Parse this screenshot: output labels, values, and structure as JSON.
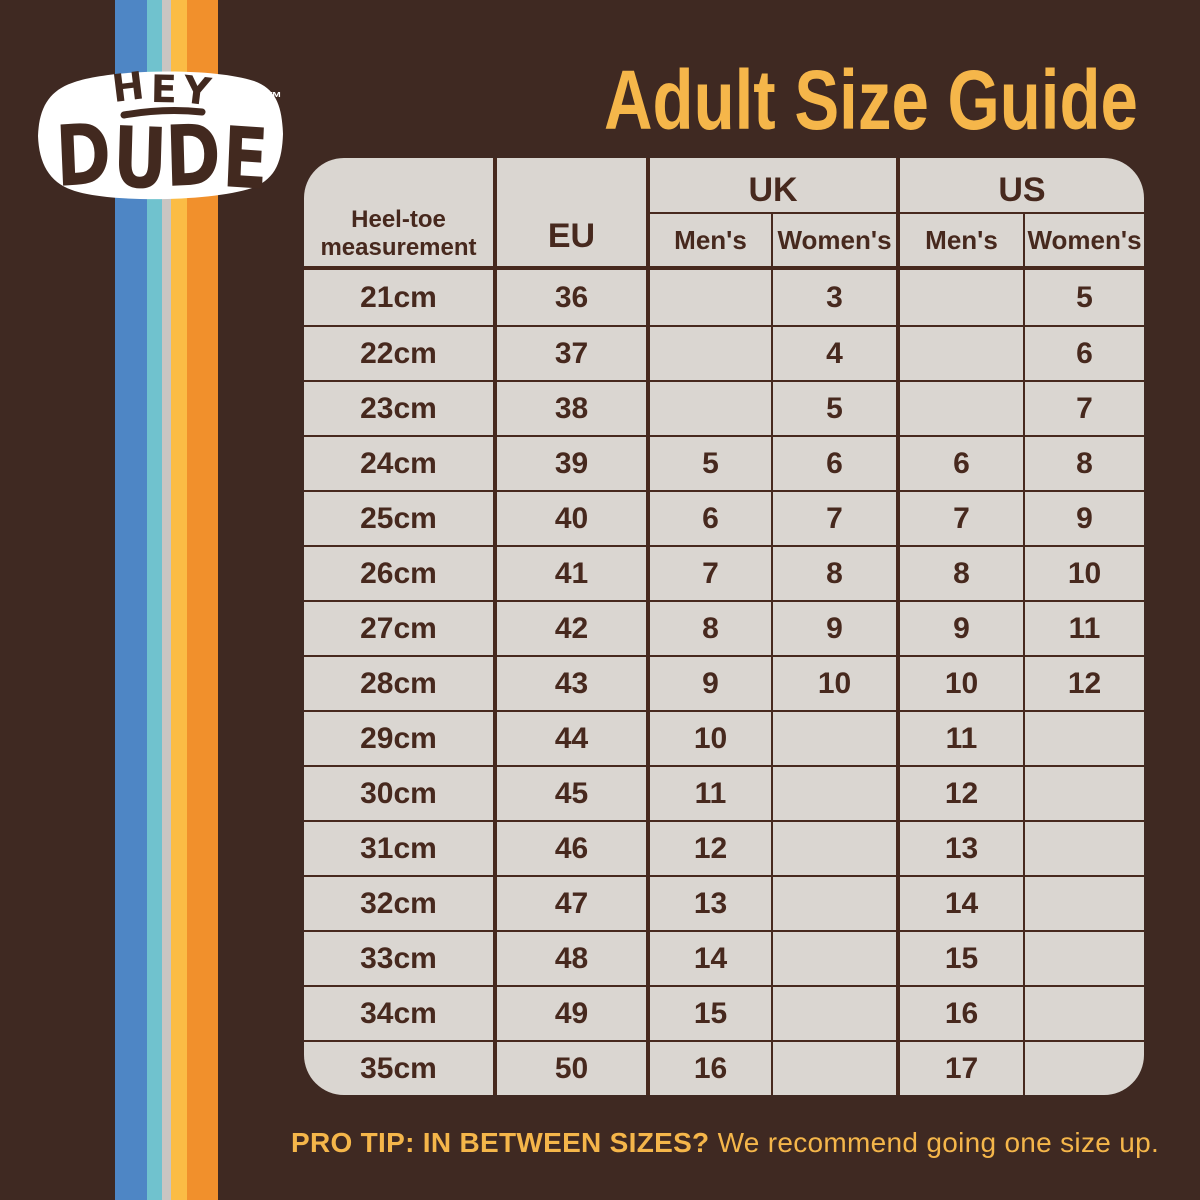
{
  "logo": {
    "line1": "HEY",
    "line2": "DUDE",
    "trademark": "™"
  },
  "title": "Adult Size Guide",
  "table": {
    "headers": {
      "heel_toe_line1": "Heel-toe",
      "heel_toe_line2": "measurement",
      "eu": "EU",
      "uk": "UK",
      "us": "US",
      "uk_mens": "Men's",
      "uk_womens": "Women's",
      "us_mens": "Men's",
      "us_womens": "Women's"
    }
  },
  "chart_data": {
    "type": "table",
    "title": "Adult Size Guide",
    "column_groups": [
      "",
      "",
      "UK",
      "UK",
      "US",
      "US"
    ],
    "columns": [
      "Heel-toe measurement",
      "EU",
      "UK Men's",
      "UK Women's",
      "US Men's",
      "US Women's"
    ],
    "rows": [
      [
        "21cm",
        "36",
        "",
        "3",
        "",
        "5"
      ],
      [
        "22cm",
        "37",
        "",
        "4",
        "",
        "6"
      ],
      [
        "23cm",
        "38",
        "",
        "5",
        "",
        "7"
      ],
      [
        "24cm",
        "39",
        "5",
        "6",
        "6",
        "8"
      ],
      [
        "25cm",
        "40",
        "6",
        "7",
        "7",
        "9"
      ],
      [
        "26cm",
        "41",
        "7",
        "8",
        "8",
        "10"
      ],
      [
        "27cm",
        "42",
        "8",
        "9",
        "9",
        "11"
      ],
      [
        "28cm",
        "43",
        "9",
        "10",
        "10",
        "12"
      ],
      [
        "29cm",
        "44",
        "10",
        "",
        "11",
        ""
      ],
      [
        "30cm",
        "45",
        "11",
        "",
        "12",
        ""
      ],
      [
        "31cm",
        "46",
        "12",
        "",
        "13",
        ""
      ],
      [
        "32cm",
        "47",
        "13",
        "",
        "14",
        ""
      ],
      [
        "33cm",
        "48",
        "14",
        "",
        "15",
        ""
      ],
      [
        "34cm",
        "49",
        "15",
        "",
        "16",
        ""
      ],
      [
        "35cm",
        "50",
        "16",
        "",
        "17",
        ""
      ]
    ]
  },
  "footer": {
    "bold": "PRO TIP: IN BETWEEN SIZES?",
    "regular": "We recommend going one size up."
  },
  "colors": {
    "background": "#3F2922",
    "panel": "#DAD6D1",
    "ink": "#47291E",
    "accent_yellow": "#F5B64A",
    "stripe_blue": "#4E86C5",
    "stripe_teal": "#70C2CE",
    "stripe_gray": "#C9C5C2",
    "stripe_yellow": "#FBBC45",
    "stripe_orange": "#F1902C"
  }
}
